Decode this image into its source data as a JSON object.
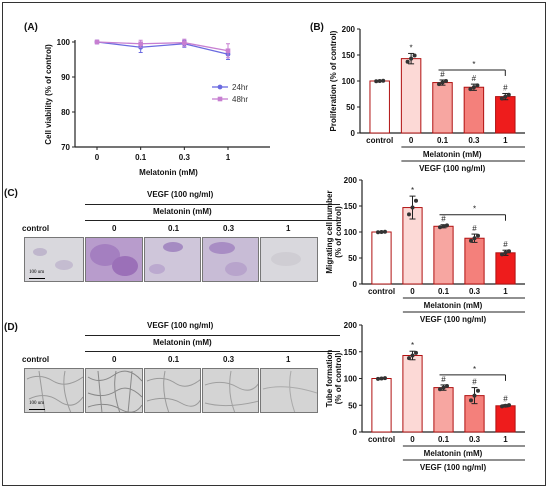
{
  "panels": {
    "A": "(A)",
    "B": "(B)",
    "C": "(C)",
    "D": "(D)"
  },
  "header_c": {
    "vegf": "VEGF (100 ng/ml)",
    "melatonin": "Melatonin (mM)",
    "control": "control",
    "doses": [
      "0",
      "0.1",
      "0.3",
      "1"
    ]
  },
  "header_d": {
    "vegf": "VEGF (100 ng/ml)",
    "melatonin": "Melatonin (mM)",
    "control": "control",
    "doses": [
      "0",
      "0.1",
      "0.3",
      "1"
    ]
  },
  "scale_bar": "100 um",
  "colors": {
    "bars": [
      "#ffffff",
      "#fcd9d6",
      "#f7a6a1",
      "#f4807b",
      "#ee1c1c"
    ],
    "line_24hr": "#6a6ae0",
    "line_48hr": "#c77fd1"
  },
  "chart_data": [
    {
      "id": "A",
      "type": "line",
      "xlabel": "Melatonin (mM)",
      "ylabel": "Cell viability (% of control)",
      "categories": [
        "0",
        "0.1",
        "0.3",
        "1"
      ],
      "ylim": [
        70,
        100
      ],
      "yticks": [
        70,
        80,
        90,
        100
      ],
      "legend_position": "right",
      "series": [
        {
          "name": "24hr",
          "values": [
            100,
            98.5,
            99.5,
            96.5
          ],
          "errors": [
            0.5,
            1.5,
            1.0,
            1.5
          ]
        },
        {
          "name": "48hr",
          "values": [
            100,
            99.5,
            99.8,
            97.5
          ],
          "errors": [
            0.5,
            1.0,
            1.0,
            2.0
          ]
        }
      ]
    },
    {
      "id": "B",
      "type": "bar",
      "ylabel": "Proliferation (% of control)",
      "categories": [
        "control",
        "0",
        "0.1",
        "0.3",
        "1"
      ],
      "values": [
        100,
        143,
        97,
        88,
        70
      ],
      "errors": [
        1,
        10,
        5,
        6,
        6
      ],
      "annotations": [
        "",
        "*",
        "#",
        "#",
        "#"
      ],
      "bracket": {
        "from": 2,
        "to": 4,
        "label": "*"
      },
      "ylim": [
        0,
        200
      ],
      "yticks": [
        0,
        50,
        100,
        150,
        200
      ],
      "xlabel_line1": "Melatonin (mM)",
      "xlabel_line2": "VEGF (100 ng/ml)"
    },
    {
      "id": "C",
      "type": "bar",
      "ylabel": "Migrating cell number (% of control)",
      "categories": [
        "control",
        "0",
        "0.1",
        "0.3",
        "1"
      ],
      "values": [
        100,
        147,
        111,
        88,
        60
      ],
      "errors": [
        1,
        22,
        3,
        8,
        5
      ],
      "annotations": [
        "",
        "*",
        "#",
        "#",
        "#"
      ],
      "bracket": {
        "from": 2,
        "to": 4,
        "label": "*"
      },
      "ylim": [
        0,
        200
      ],
      "yticks": [
        0,
        50,
        100,
        150,
        200
      ],
      "xlabel_line1": "Melatonin (mM)",
      "xlabel_line2": "VEGF (100 ng/ml)"
    },
    {
      "id": "D",
      "type": "bar",
      "ylabel": "Tube formation (% of control)",
      "categories": [
        "control",
        "0",
        "0.1",
        "0.3",
        "1"
      ],
      "values": [
        100,
        143,
        83,
        68,
        49
      ],
      "errors": [
        1,
        8,
        5,
        15,
        2
      ],
      "annotations": [
        "",
        "*",
        "#",
        "#",
        "#"
      ],
      "bracket": {
        "from": 2,
        "to": 4,
        "label": "*"
      },
      "ylim": [
        0,
        200
      ],
      "yticks": [
        0,
        50,
        100,
        150,
        200
      ],
      "xlabel_line1": "Melatonin (mM)",
      "xlabel_line2": "VEGF (100 ng/ml)"
    }
  ]
}
